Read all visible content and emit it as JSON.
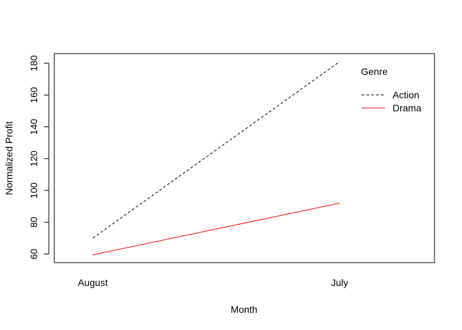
{
  "chart_data": {
    "type": "line",
    "categories": [
      "August",
      "July"
    ],
    "xlabel": "Month",
    "ylabel": "Normalized Profit",
    "ylim": [
      55,
      185
    ],
    "yticks": [
      60,
      80,
      100,
      120,
      140,
      160,
      180
    ],
    "grid": false,
    "legend": {
      "title": "Genre",
      "placement": "top-right"
    },
    "series": [
      {
        "name": "Action",
        "values": [
          70,
          181
        ],
        "color": "#000000",
        "dash": "dashed"
      },
      {
        "name": "Drama",
        "values": [
          59.5,
          92
        ],
        "color": "#ff0000",
        "dash": "solid"
      }
    ]
  }
}
